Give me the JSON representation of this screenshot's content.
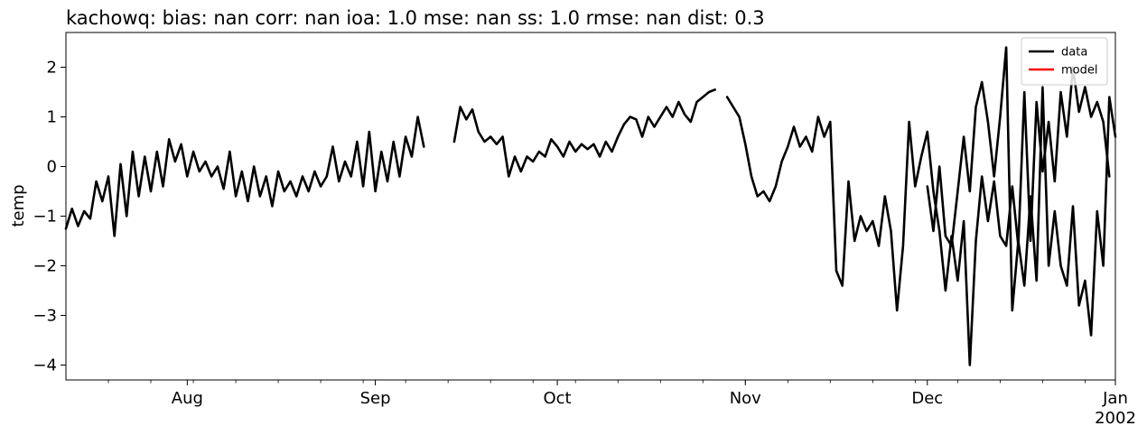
{
  "chart_data": {
    "type": "line",
    "title": "kachowq: bias: nan  corr: nan  ioa: 1.0  mse: nan  ss: 1.0  rmse: nan  dist: 0.3",
    "ylabel": "temp",
    "xlabel": "",
    "ylim": [
      -4.3,
      2.7
    ],
    "yticks": [
      -4,
      -3,
      -2,
      -1,
      0,
      1,
      2
    ],
    "xlim": [
      "2001-07-12",
      "2002-01-01"
    ],
    "xticks": [
      {
        "date": "2001-08-01",
        "label": "Aug"
      },
      {
        "date": "2001-09-01",
        "label": "Sep"
      },
      {
        "date": "2001-10-01",
        "label": "Oct"
      },
      {
        "date": "2001-11-01",
        "label": "Nov"
      },
      {
        "date": "2001-12-01",
        "label": "Dec"
      },
      {
        "date": "2002-01-01",
        "label": "Jan",
        "sublabel": "2002"
      }
    ],
    "legend": {
      "position": "top-right"
    },
    "series": [
      {
        "name": "data",
        "color": "#000000",
        "segments": [
          [
            [
              "2001-07-12",
              -1.25
            ],
            [
              "2001-07-13",
              -0.85
            ],
            [
              "2001-07-14",
              -1.2
            ],
            [
              "2001-07-15",
              -0.9
            ],
            [
              "2001-07-16",
              -1.05
            ],
            [
              "2001-07-17",
              -0.3
            ],
            [
              "2001-07-18",
              -0.7
            ],
            [
              "2001-07-19",
              -0.2
            ],
            [
              "2001-07-20",
              -1.4
            ],
            [
              "2001-07-21",
              0.05
            ],
            [
              "2001-07-22",
              -1.0
            ],
            [
              "2001-07-23",
              0.3
            ],
            [
              "2001-07-24",
              -0.6
            ],
            [
              "2001-07-25",
              0.2
            ],
            [
              "2001-07-26",
              -0.5
            ],
            [
              "2001-07-27",
              0.3
            ],
            [
              "2001-07-28",
              -0.4
            ],
            [
              "2001-07-29",
              0.55
            ],
            [
              "2001-07-30",
              0.1
            ],
            [
              "2001-07-31",
              0.45
            ],
            [
              "2001-08-01",
              -0.2
            ],
            [
              "2001-08-02",
              0.3
            ],
            [
              "2001-08-03",
              -0.1
            ],
            [
              "2001-08-04",
              0.1
            ],
            [
              "2001-08-05",
              -0.2
            ],
            [
              "2001-08-06",
              0.0
            ],
            [
              "2001-08-07",
              -0.45
            ],
            [
              "2001-08-08",
              0.3
            ],
            [
              "2001-08-09",
              -0.6
            ],
            [
              "2001-08-10",
              -0.1
            ],
            [
              "2001-08-11",
              -0.7
            ],
            [
              "2001-08-12",
              0.0
            ],
            [
              "2001-08-13",
              -0.6
            ],
            [
              "2001-08-14",
              -0.2
            ],
            [
              "2001-08-15",
              -0.8
            ],
            [
              "2001-08-16",
              -0.1
            ],
            [
              "2001-08-17",
              -0.5
            ],
            [
              "2001-08-18",
              -0.3
            ],
            [
              "2001-08-19",
              -0.6
            ],
            [
              "2001-08-20",
              -0.2
            ],
            [
              "2001-08-21",
              -0.5
            ],
            [
              "2001-08-22",
              -0.1
            ],
            [
              "2001-08-23",
              -0.4
            ],
            [
              "2001-08-24",
              -0.2
            ],
            [
              "2001-08-25",
              0.4
            ],
            [
              "2001-08-26",
              -0.3
            ],
            [
              "2001-08-27",
              0.1
            ],
            [
              "2001-08-28",
              -0.2
            ],
            [
              "2001-08-29",
              0.5
            ],
            [
              "2001-08-30",
              -0.4
            ],
            [
              "2001-08-31",
              0.7
            ],
            [
              "2001-09-01",
              -0.5
            ],
            [
              "2001-09-02",
              0.3
            ],
            [
              "2001-09-03",
              -0.3
            ],
            [
              "2001-09-04",
              0.5
            ],
            [
              "2001-09-05",
              -0.2
            ],
            [
              "2001-09-06",
              0.6
            ],
            [
              "2001-09-07",
              0.2
            ],
            [
              "2001-09-08",
              1.0
            ],
            [
              "2001-09-09",
              0.4
            ]
          ],
          [
            [
              "2001-09-14",
              0.5
            ],
            [
              "2001-09-15",
              1.2
            ],
            [
              "2001-09-16",
              0.95
            ],
            [
              "2001-09-17",
              1.15
            ],
            [
              "2001-09-18",
              0.7
            ],
            [
              "2001-09-19",
              0.5
            ],
            [
              "2001-09-20",
              0.6
            ],
            [
              "2001-09-21",
              0.45
            ],
            [
              "2001-09-22",
              0.6
            ],
            [
              "2001-09-23",
              -0.2
            ],
            [
              "2001-09-24",
              0.2
            ],
            [
              "2001-09-25",
              -0.1
            ],
            [
              "2001-09-26",
              0.2
            ],
            [
              "2001-09-27",
              0.1
            ],
            [
              "2001-09-28",
              0.3
            ],
            [
              "2001-09-29",
              0.2
            ],
            [
              "2001-09-30",
              0.55
            ],
            [
              "2001-10-01",
              0.4
            ],
            [
              "2001-10-02",
              0.2
            ],
            [
              "2001-10-03",
              0.5
            ],
            [
              "2001-10-04",
              0.3
            ],
            [
              "2001-10-05",
              0.45
            ],
            [
              "2001-10-06",
              0.35
            ],
            [
              "2001-10-07",
              0.45
            ],
            [
              "2001-10-08",
              0.2
            ],
            [
              "2001-10-09",
              0.5
            ],
            [
              "2001-10-10",
              0.3
            ],
            [
              "2001-10-11",
              0.6
            ],
            [
              "2001-10-12",
              0.85
            ],
            [
              "2001-10-13",
              1.0
            ],
            [
              "2001-10-14",
              0.95
            ],
            [
              "2001-10-15",
              0.6
            ],
            [
              "2001-10-16",
              1.0
            ],
            [
              "2001-10-17",
              0.8
            ],
            [
              "2001-10-18",
              1.0
            ],
            [
              "2001-10-19",
              1.2
            ],
            [
              "2001-10-20",
              1.0
            ],
            [
              "2001-10-21",
              1.3
            ],
            [
              "2001-10-22",
              1.05
            ],
            [
              "2001-10-23",
              0.9
            ],
            [
              "2001-10-24",
              1.3
            ],
            [
              "2001-10-25",
              1.4
            ],
            [
              "2001-10-26",
              1.5
            ],
            [
              "2001-10-27",
              1.55
            ]
          ],
          [
            [
              "2001-10-29",
              1.4
            ],
            [
              "2001-10-30",
              1.2
            ],
            [
              "2001-10-31",
              1.0
            ],
            [
              "2001-11-01",
              0.45
            ],
            [
              "2001-11-02",
              -0.2
            ],
            [
              "2001-11-03",
              -0.6
            ],
            [
              "2001-11-04",
              -0.5
            ],
            [
              "2001-11-05",
              -0.7
            ],
            [
              "2001-11-06",
              -0.4
            ],
            [
              "2001-11-07",
              0.1
            ],
            [
              "2001-11-08",
              0.4
            ],
            [
              "2001-11-09",
              0.8
            ],
            [
              "2001-11-10",
              0.4
            ],
            [
              "2001-11-11",
              0.6
            ],
            [
              "2001-11-12",
              0.3
            ],
            [
              "2001-11-13",
              1.0
            ],
            [
              "2001-11-14",
              0.6
            ],
            [
              "2001-11-15",
              0.9
            ],
            [
              "2001-11-16",
              -2.1
            ],
            [
              "2001-11-17",
              -2.4
            ],
            [
              "2001-11-18",
              -0.3
            ],
            [
              "2001-11-19",
              -1.5
            ],
            [
              "2001-11-20",
              -1.0
            ],
            [
              "2001-11-21",
              -1.3
            ],
            [
              "2001-11-22",
              -1.1
            ],
            [
              "2001-11-23",
              -1.6
            ],
            [
              "2001-11-24",
              -0.6
            ],
            [
              "2001-11-25",
              -1.3
            ],
            [
              "2001-11-26",
              -2.9
            ],
            [
              "2001-11-27",
              -1.6
            ],
            [
              "2001-11-28",
              0.9
            ],
            [
              "2001-11-29",
              -0.4
            ],
            [
              "2001-11-30",
              0.2
            ],
            [
              "2001-12-01",
              0.7
            ],
            [
              "2001-12-02",
              -0.5
            ],
            [
              "2001-12-03",
              -1.3
            ],
            [
              "2001-12-04",
              -2.5
            ],
            [
              "2001-12-05",
              -1.4
            ],
            [
              "2001-12-06",
              -2.3
            ],
            [
              "2001-12-07",
              -1.1
            ],
            [
              "2001-12-08",
              -4.0
            ],
            [
              "2001-12-09",
              -1.5
            ],
            [
              "2001-12-10",
              -0.2
            ],
            [
              "2001-12-11",
              -1.1
            ],
            [
              "2001-12-12",
              -0.3
            ],
            [
              "2001-12-13",
              -1.4
            ],
            [
              "2001-12-14",
              -1.6
            ],
            [
              "2001-12-15",
              -0.4
            ],
            [
              "2001-12-16",
              -1.6
            ],
            [
              "2001-12-17",
              1.5
            ],
            [
              "2001-12-18",
              -1.5
            ],
            [
              "2001-12-19",
              1.3
            ],
            [
              "2001-12-20",
              -0.1
            ],
            [
              "2001-12-21",
              0.9
            ],
            [
              "2001-12-22",
              -0.3
            ],
            [
              "2001-12-23",
              1.5
            ],
            [
              "2001-12-24",
              0.6
            ],
            [
              "2001-12-25",
              2.0
            ],
            [
              "2001-12-26",
              1.1
            ],
            [
              "2001-12-27",
              1.6
            ],
            [
              "2001-12-28",
              1.0
            ],
            [
              "2001-12-29",
              1.3
            ],
            [
              "2001-12-30",
              0.9
            ],
            [
              "2001-12-31",
              -0.2
            ]
          ],
          [
            [
              "2001-12-01",
              -0.4
            ],
            [
              "2001-12-02",
              -1.3
            ],
            [
              "2001-12-03",
              0.0
            ],
            [
              "2001-12-04",
              -1.4
            ],
            [
              "2001-12-05",
              -1.6
            ],
            [
              "2001-12-06",
              -0.5
            ],
            [
              "2001-12-07",
              0.6
            ],
            [
              "2001-12-08",
              -0.5
            ],
            [
              "2001-12-09",
              1.2
            ],
            [
              "2001-12-10",
              1.7
            ],
            [
              "2001-12-11",
              0.9
            ],
            [
              "2001-12-12",
              -0.2
            ],
            [
              "2001-12-13",
              1.0
            ],
            [
              "2001-12-14",
              2.4
            ],
            [
              "2001-12-15",
              -2.9
            ],
            [
              "2001-12-16",
              -1.5
            ],
            [
              "2001-12-17",
              -2.4
            ],
            [
              "2001-12-18",
              -0.6
            ],
            [
              "2001-12-19",
              -2.3
            ],
            [
              "2001-12-20",
              1.6
            ],
            [
              "2001-12-21",
              -2.0
            ],
            [
              "2001-12-22",
              -0.9
            ],
            [
              "2001-12-23",
              -2.0
            ],
            [
              "2001-12-24",
              -2.4
            ],
            [
              "2001-12-25",
              -0.8
            ],
            [
              "2001-12-26",
              -2.8
            ],
            [
              "2001-12-27",
              -2.3
            ],
            [
              "2001-12-28",
              -3.4
            ],
            [
              "2001-12-29",
              -0.9
            ],
            [
              "2001-12-30",
              -2.0
            ],
            [
              "2001-12-31",
              1.4
            ],
            [
              "2002-01-01",
              0.6
            ]
          ]
        ]
      },
      {
        "name": "model",
        "color": "#ff0000",
        "segments": []
      }
    ]
  }
}
